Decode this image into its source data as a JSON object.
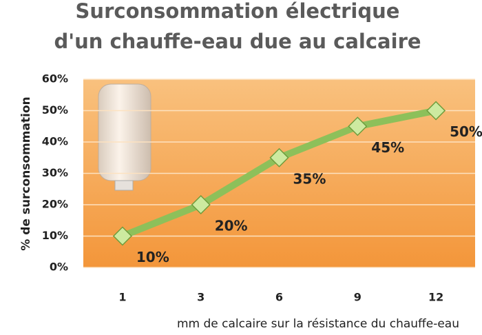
{
  "chart_data": {
    "type": "line",
    "title": [
      "Surconsommation électrique",
      "d'un chauffe-eau due au calcaire"
    ],
    "x_label": "mm de calcaire sur la résistance du chauffe-eau",
    "y_label": "% de surconsommation",
    "categories": [
      "1",
      "3",
      "6",
      "9",
      "12"
    ],
    "values": [
      10,
      20,
      35,
      45,
      50
    ],
    "value_labels": [
      "10%",
      "20%",
      "35%",
      "45%",
      "50%"
    ],
    "color": "#8dc05a",
    "ylim": [
      0,
      60
    ],
    "yticks": [
      {
        "value": 0,
        "label": "0%"
      },
      {
        "value": 10,
        "label": "10%"
      },
      {
        "value": 20,
        "label": "20%"
      },
      {
        "value": 30,
        "label": "30%"
      },
      {
        "value": 40,
        "label": "40%"
      },
      {
        "value": 50,
        "label": "50%"
      },
      {
        "value": 60,
        "label": "60%"
      }
    ],
    "grid": true
  }
}
